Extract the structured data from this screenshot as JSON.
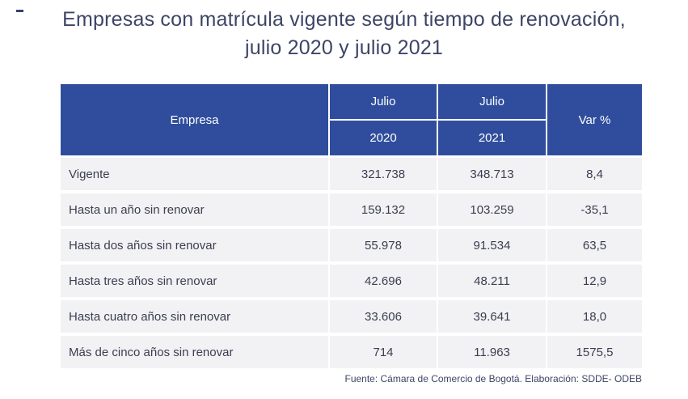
{
  "page": {
    "title_line1": "Empresas con matrícula vigente según tiempo de renovación,",
    "title_line2": "julio 2020 y julio 2021",
    "footer": "Fuente: Cámara de Comercio de Bogotá. Elaboración: SDDE- ODEB"
  },
  "colors": {
    "header_bg": "#2f4d9c",
    "row_bg": "#f2f2f4",
    "separator": "#ffffff",
    "title_text": "#3d4566",
    "body_text": "#3b3e51",
    "header_text": "#ffffff"
  },
  "table": {
    "header": {
      "empresa": "Empresa",
      "col1_top": "Julio",
      "col1_bottom": "2020",
      "col2_top": "Julio",
      "col2_bottom": "2021",
      "var": "Var %"
    },
    "rows": [
      {
        "empresa": "Vigente",
        "jul2020": "321.738",
        "jul2021": "348.713",
        "var": "8,4"
      },
      {
        "empresa": "Hasta un año sin renovar",
        "jul2020": "159.132",
        "jul2021": "103.259",
        "var": "-35,1"
      },
      {
        "empresa": "Hasta dos años sin renovar",
        "jul2020": "55.978",
        "jul2021": "91.534",
        "var": "63,5"
      },
      {
        "empresa": "Hasta tres años sin renovar",
        "jul2020": "42.696",
        "jul2021": "48.211",
        "var": "12,9"
      },
      {
        "empresa": "Hasta cuatro años sin renovar",
        "jul2020": "33.606",
        "jul2021": "39.641",
        "var": "18,0"
      },
      {
        "empresa": "Más de cinco años sin renovar",
        "jul2020": "714",
        "jul2021": "11.963",
        "var": "1575,5"
      }
    ]
  },
  "chart_data": {
    "type": "table",
    "title": "Empresas con matrícula vigente según tiempo de renovación, julio 2020 y julio 2021",
    "columns": [
      "Empresa",
      "Julio 2020",
      "Julio 2021",
      "Var %"
    ],
    "rows": [
      [
        "Vigente",
        321738,
        348713,
        8.4
      ],
      [
        "Hasta un año sin renovar",
        159132,
        103259,
        -35.1
      ],
      [
        "Hasta dos años sin renovar",
        55978,
        91534,
        63.5
      ],
      [
        "Hasta tres años sin renovar",
        42696,
        48211,
        12.9
      ],
      [
        "Hasta cuatro años sin renovar",
        33606,
        39641,
        18.0
      ],
      [
        "Más de cinco años sin renovar",
        714,
        11963,
        1575.5
      ]
    ],
    "source": "Fuente: Cámara de Comercio de Bogotá. Elaboración: SDDE- ODEB"
  }
}
